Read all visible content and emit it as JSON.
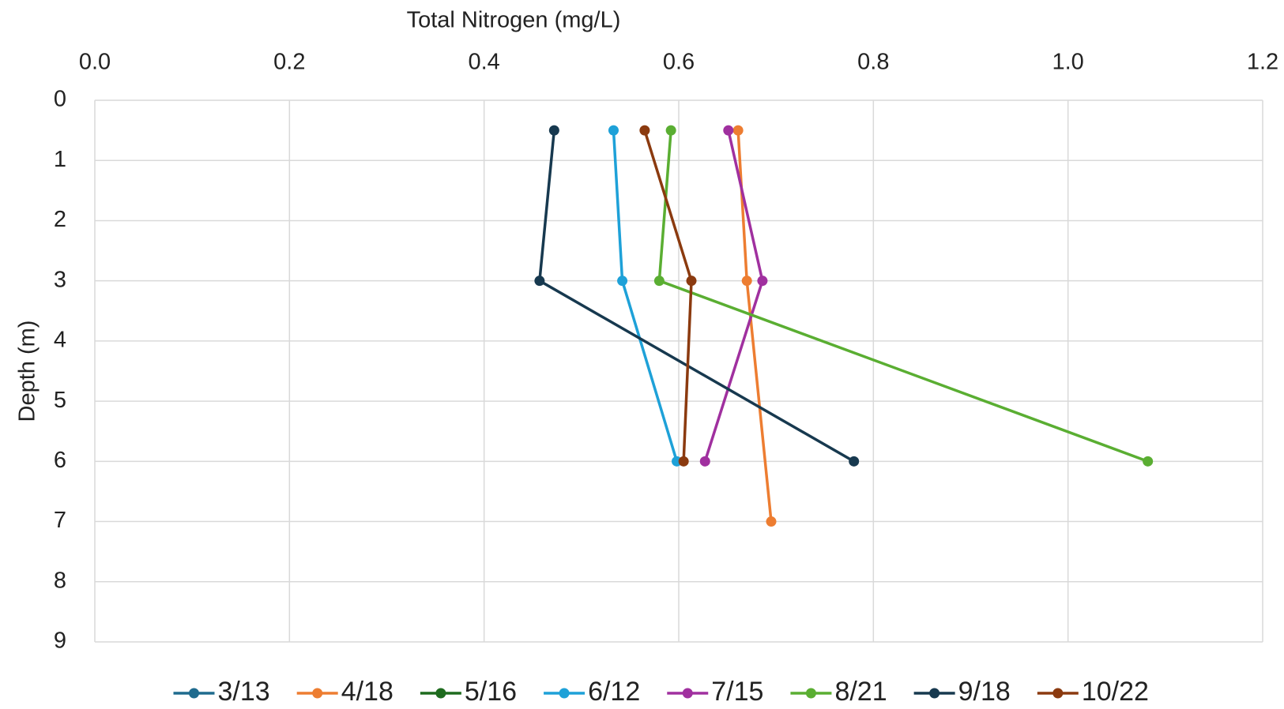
{
  "chart_data": {
    "type": "line",
    "xlabel": "Total Nitrogen (mg/L)",
    "ylabel": "Depth (m)",
    "xlim": [
      0,
      1.2
    ],
    "xticks": [
      {
        "value": 0,
        "label": "0.0"
      },
      0.2,
      0.4,
      0.6,
      0.8,
      {
        "value": 1,
        "label": "1.0"
      },
      1.2
    ],
    "ylim": [
      0,
      9
    ],
    "yticks": [
      0,
      1,
      2,
      3,
      4,
      5,
      6,
      7,
      8,
      9
    ],
    "y_inverted": true,
    "x_axis_top": true,
    "grid": true,
    "legend": "bottom",
    "series": [
      {
        "name": "3/13",
        "color": "#1f6b8e",
        "x": [],
        "y": []
      },
      {
        "name": "4/18",
        "color": "#ed7d31",
        "x": [
          0.661,
          0.67,
          0.695
        ],
        "y": [
          0.5,
          3,
          7
        ]
      },
      {
        "name": "5/16",
        "color": "#1e6b1e",
        "x": [],
        "y": []
      },
      {
        "name": "6/12",
        "color": "#1ea1d8",
        "x": [
          0.533,
          0.542,
          0.598
        ],
        "y": [
          0.5,
          3,
          6
        ]
      },
      {
        "name": "7/15",
        "color": "#a0309f",
        "x": [
          0.651,
          0.686,
          0.627
        ],
        "y": [
          0.5,
          3,
          6
        ]
      },
      {
        "name": "8/21",
        "color": "#5aae32",
        "x": [
          0.592,
          0.58,
          1.082
        ],
        "y": [
          0.5,
          3,
          6
        ]
      },
      {
        "name": "9/18",
        "color": "#17394f",
        "x": [
          0.472,
          0.457,
          0.78
        ],
        "y": [
          0.5,
          3,
          6
        ]
      },
      {
        "name": "10/22",
        "color": "#8b3a0f",
        "x": [
          0.565,
          0.613,
          0.605
        ],
        "y": [
          0.5,
          3,
          6
        ]
      }
    ]
  }
}
